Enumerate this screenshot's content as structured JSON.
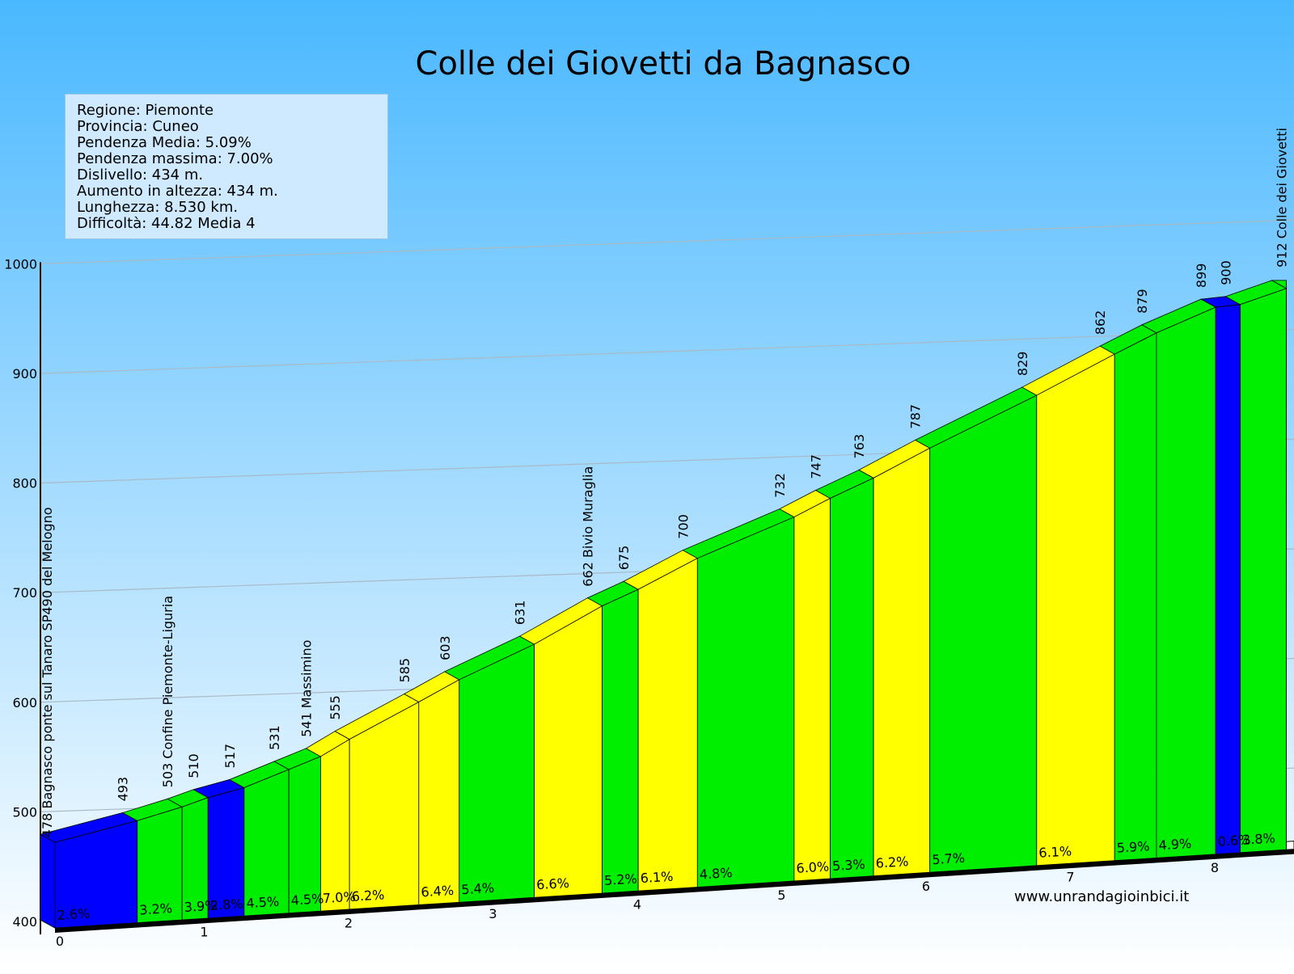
{
  "chart_data": {
    "type": "area",
    "title": "Colle dei Giovetti da Bagnasco",
    "ylim": [
      400,
      1000
    ],
    "y_ticks": [
      400,
      500,
      600,
      700,
      800,
      900,
      1000
    ],
    "xlim": [
      0,
      8.53
    ],
    "x_ticks": [
      0,
      1,
      2,
      3,
      4,
      5,
      6,
      7,
      8
    ],
    "info": {
      "lines": [
        "Regione: Piemonte",
        "Provincia: Cuneo",
        "Pendenza Media: 5.09%",
        "Pendenza massima: 7.00%",
        "Dislivello: 434 m.",
        "Aumento in altezza: 434 m.",
        "Lunghezza: 8.530 km.",
        "Difficoltà: 44.82 Media 4"
      ]
    },
    "website": "www.unrandagioinbici.it",
    "colors": {
      "low": "#0000ff",
      "mid": "#00ee00",
      "high": "#ffff00",
      "sky_top": "#4ab8ff",
      "sky_bottom": "#ffffff"
    },
    "points": [
      {
        "km": 0.0,
        "alt": 478,
        "label": "478 Bagnasco ponte sul Tanaro SP490 del Melogno"
      },
      {
        "km": 0.57,
        "alt": 493,
        "label": "493"
      },
      {
        "km": 0.88,
        "alt": 503,
        "label": "503 Confine Piemonte-Liguria"
      },
      {
        "km": 1.06,
        "alt": 510,
        "label": "510"
      },
      {
        "km": 1.31,
        "alt": 517,
        "label": "517"
      },
      {
        "km": 1.62,
        "alt": 531,
        "label": "531"
      },
      {
        "km": 1.84,
        "alt": 541,
        "label": "541 Massimino"
      },
      {
        "km": 2.04,
        "alt": 555,
        "label": "555"
      },
      {
        "km": 2.52,
        "alt": 585,
        "label": "585"
      },
      {
        "km": 2.8,
        "alt": 603,
        "label": "603"
      },
      {
        "km": 3.32,
        "alt": 631,
        "label": "631"
      },
      {
        "km": 3.79,
        "alt": 662,
        "label": "662 Bivio Muraglia"
      },
      {
        "km": 4.04,
        "alt": 675,
        "label": "675"
      },
      {
        "km": 4.45,
        "alt": 700,
        "label": "700"
      },
      {
        "km": 5.12,
        "alt": 732,
        "label": "732"
      },
      {
        "km": 5.37,
        "alt": 747,
        "label": "747"
      },
      {
        "km": 5.67,
        "alt": 763,
        "label": "763"
      },
      {
        "km": 6.06,
        "alt": 787,
        "label": "787"
      },
      {
        "km": 6.8,
        "alt": 829,
        "label": "829"
      },
      {
        "km": 7.34,
        "alt": 862,
        "label": "862"
      },
      {
        "km": 7.63,
        "alt": 879,
        "label": "879"
      },
      {
        "km": 8.04,
        "alt": 899,
        "label": "899"
      },
      {
        "km": 8.21,
        "alt": 900,
        "label": "900"
      },
      {
        "km": 8.53,
        "alt": 912,
        "label": "912 Colle dei Giovetti"
      }
    ],
    "segments": [
      {
        "gradient": "2.6%",
        "class": "low"
      },
      {
        "gradient": "3.2%",
        "class": "mid"
      },
      {
        "gradient": "3.9%",
        "class": "mid"
      },
      {
        "gradient": "2.8%",
        "class": "low"
      },
      {
        "gradient": "4.5%",
        "class": "mid"
      },
      {
        "gradient": "4.5%",
        "class": "mid"
      },
      {
        "gradient": "7.0%",
        "class": "high"
      },
      {
        "gradient": "6.2%",
        "class": "high"
      },
      {
        "gradient": "6.4%",
        "class": "high"
      },
      {
        "gradient": "5.4%",
        "class": "mid"
      },
      {
        "gradient": "6.6%",
        "class": "high"
      },
      {
        "gradient": "5.2%",
        "class": "mid"
      },
      {
        "gradient": "6.1%",
        "class": "high"
      },
      {
        "gradient": "4.8%",
        "class": "mid"
      },
      {
        "gradient": "6.0%",
        "class": "high"
      },
      {
        "gradient": "5.3%",
        "class": "mid"
      },
      {
        "gradient": "6.2%",
        "class": "high"
      },
      {
        "gradient": "5.7%",
        "class": "mid"
      },
      {
        "gradient": "6.1%",
        "class": "high"
      },
      {
        "gradient": "5.9%",
        "class": "mid"
      },
      {
        "gradient": "4.9%",
        "class": "mid"
      },
      {
        "gradient": "0.6%",
        "class": "low"
      },
      {
        "gradient": "3.8%",
        "class": "mid"
      }
    ]
  }
}
